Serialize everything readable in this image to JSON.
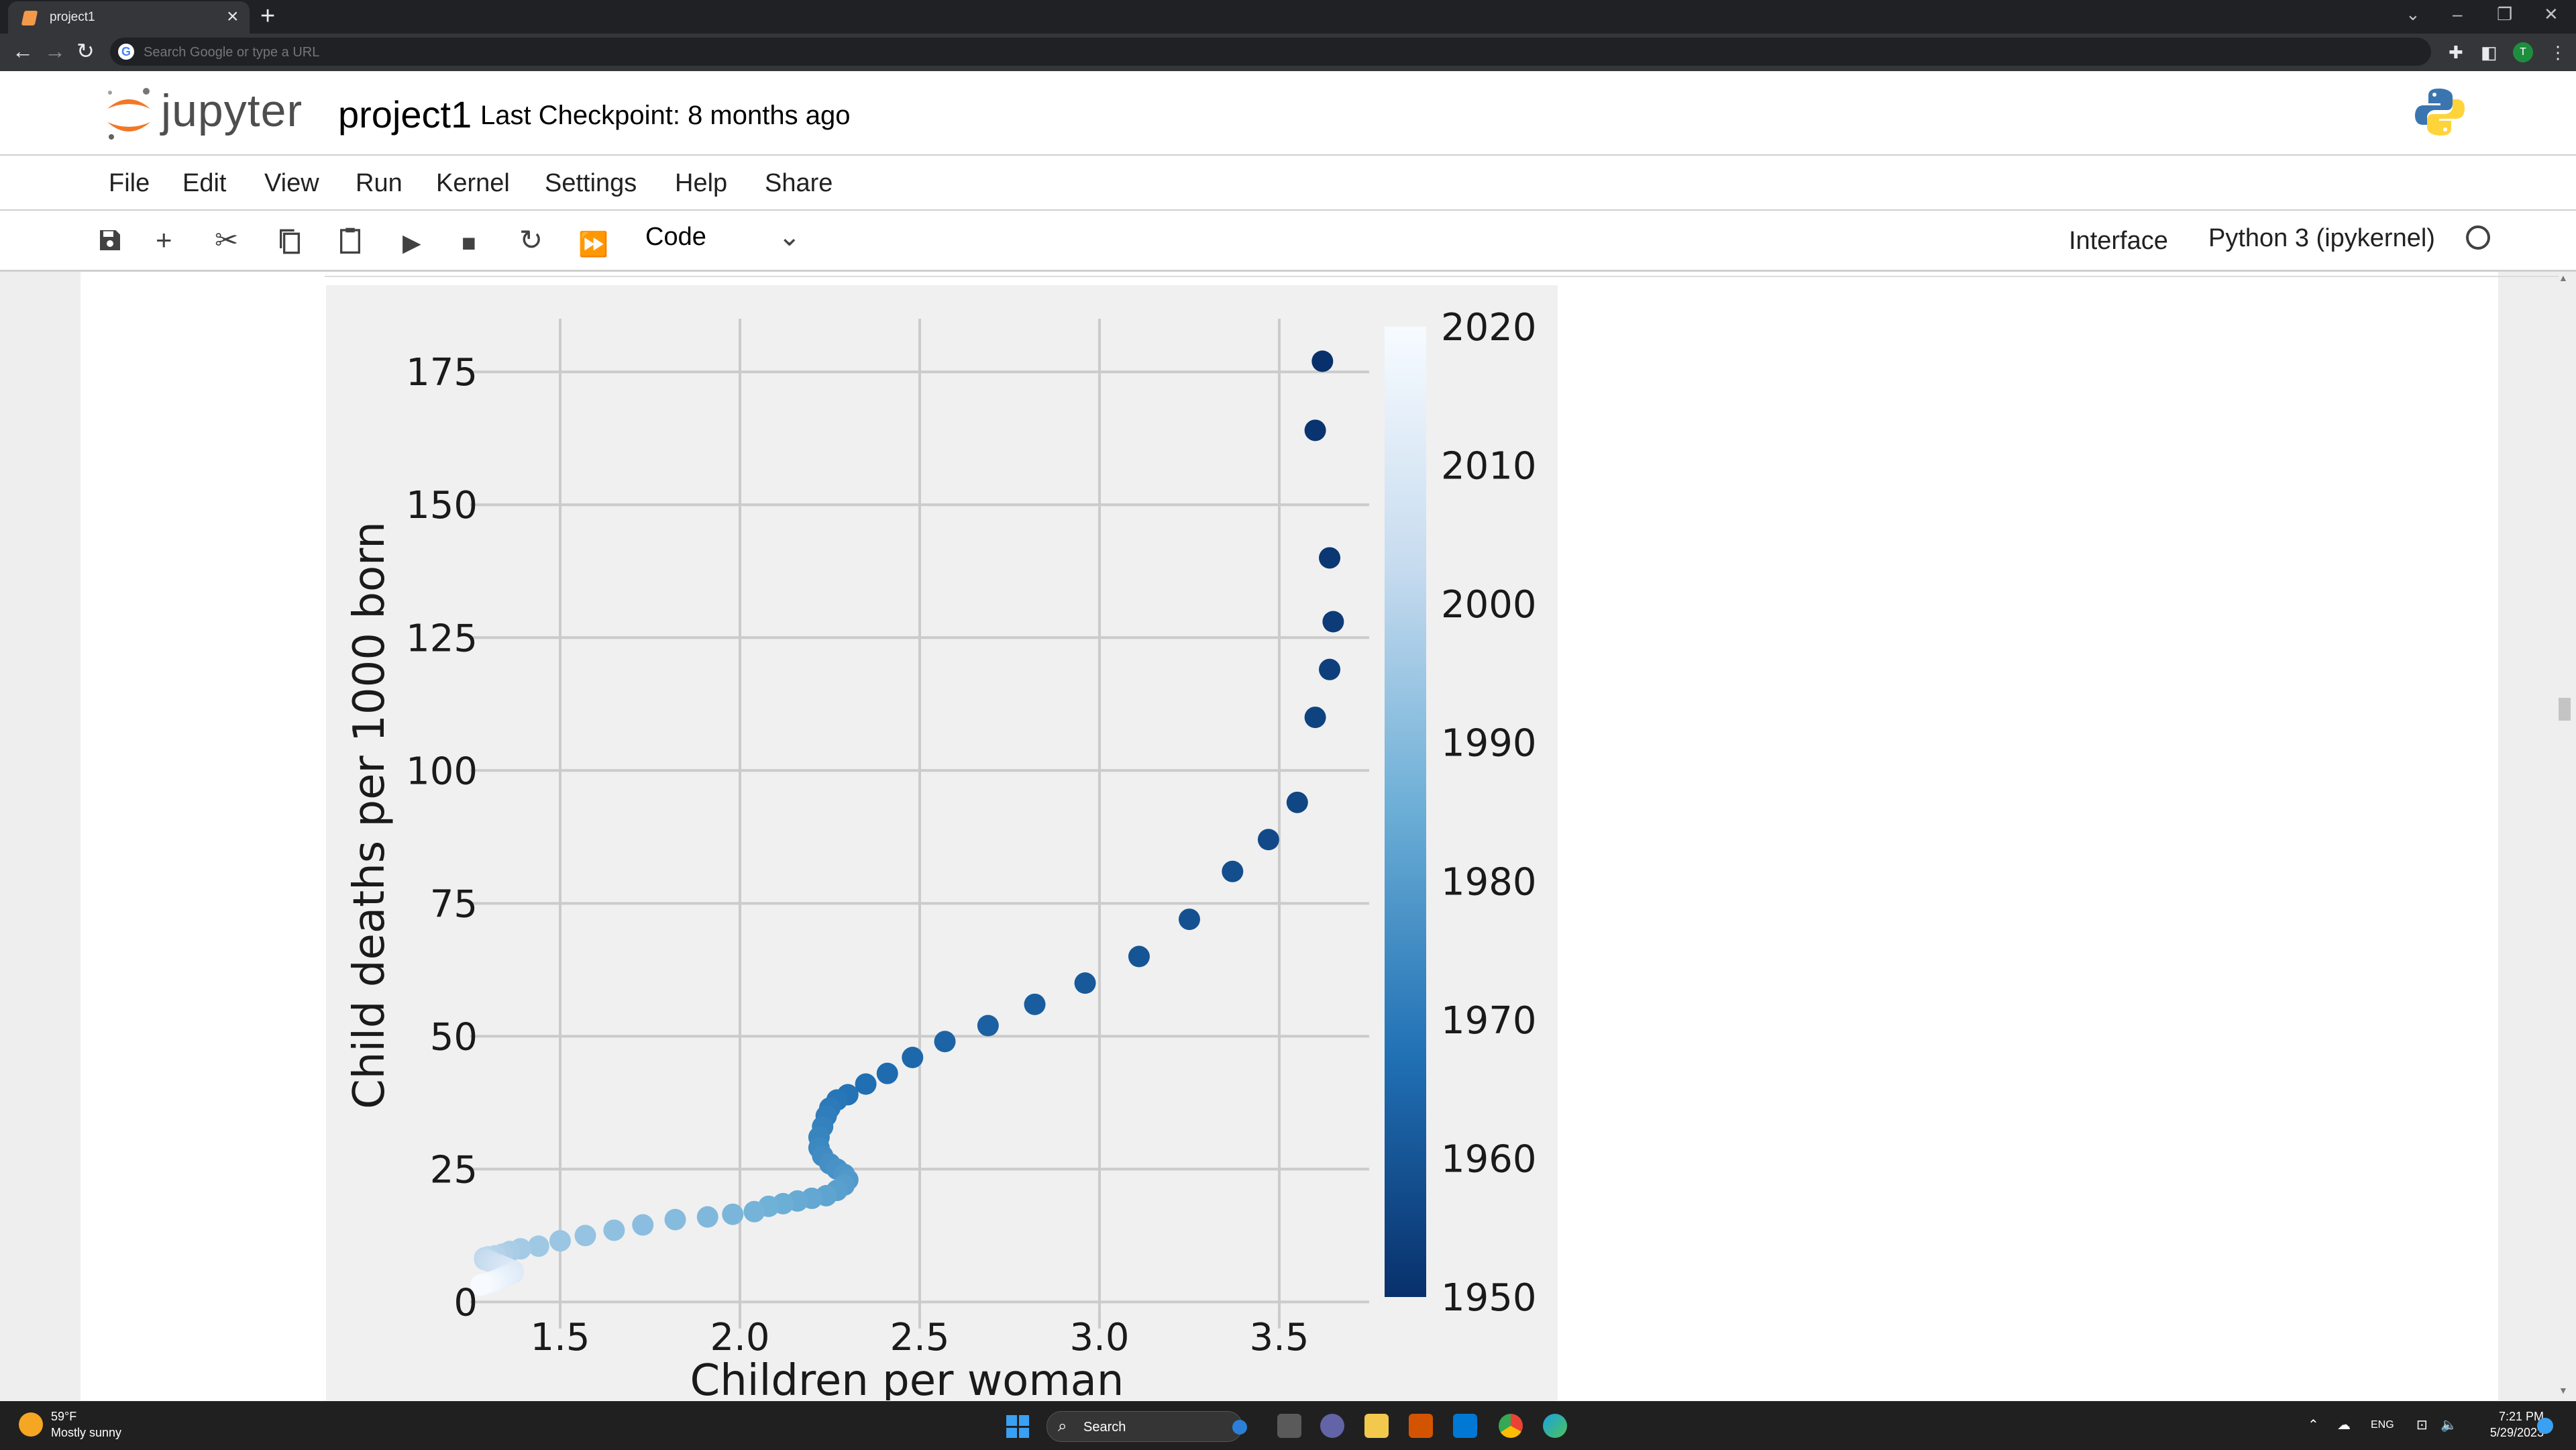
{
  "browser": {
    "tab_title": "project1",
    "omnibox_placeholder": "Search Google or type a URL"
  },
  "jupyter": {
    "logo_text": "jupyter",
    "notebook_name": "project1",
    "checkpoint": "Last Checkpoint: 8 months ago"
  },
  "menu": [
    "File",
    "Edit",
    "View",
    "Run",
    "Kernel",
    "Settings",
    "Help",
    "Share"
  ],
  "toolbar": {
    "cell_type": "Code",
    "interface_label": "Interface",
    "kernel_name": "Python 3 (ipykernel)"
  },
  "chart_data": {
    "type": "scatter",
    "xlabel": "Children per woman",
    "ylabel": "Child deaths per 1000 born",
    "xlim": [
      1.25,
      3.75
    ],
    "ylim": [
      -5,
      185
    ],
    "xticks": [
      1.5,
      2.0,
      2.5,
      3.0,
      3.5
    ],
    "yticks": [
      0,
      25,
      50,
      75,
      100,
      125,
      150,
      175
    ],
    "grid": true,
    "colorbar": {
      "label": "",
      "min": 1950,
      "max": 2020,
      "ticks": [
        1950,
        1960,
        1970,
        1980,
        1990,
        2000,
        2010,
        2020
      ],
      "colormap": "Blues_r"
    },
    "points": [
      {
        "year": 1950,
        "x": 3.62,
        "y": 177
      },
      {
        "year": 1951,
        "x": 3.6,
        "y": 164
      },
      {
        "year": 1952,
        "x": 3.64,
        "y": 140
      },
      {
        "year": 1953,
        "x": 3.65,
        "y": 128
      },
      {
        "year": 1954,
        "x": 3.64,
        "y": 119
      },
      {
        "year": 1955,
        "x": 3.6,
        "y": 110
      },
      {
        "year": 1956,
        "x": 3.55,
        "y": 94
      },
      {
        "year": 1957,
        "x": 3.47,
        "y": 87
      },
      {
        "year": 1958,
        "x": 3.37,
        "y": 81
      },
      {
        "year": 1959,
        "x": 3.25,
        "y": 72
      },
      {
        "year": 1960,
        "x": 3.11,
        "y": 65
      },
      {
        "year": 1961,
        "x": 2.96,
        "y": 60
      },
      {
        "year": 1962,
        "x": 2.82,
        "y": 56
      },
      {
        "year": 1963,
        "x": 2.69,
        "y": 52
      },
      {
        "year": 1964,
        "x": 2.57,
        "y": 49
      },
      {
        "year": 1965,
        "x": 2.48,
        "y": 46
      },
      {
        "year": 1966,
        "x": 2.41,
        "y": 43
      },
      {
        "year": 1967,
        "x": 2.35,
        "y": 41
      },
      {
        "year": 1968,
        "x": 2.3,
        "y": 39
      },
      {
        "year": 1969,
        "x": 2.27,
        "y": 38
      },
      {
        "year": 1970,
        "x": 2.25,
        "y": 36.5
      },
      {
        "year": 1971,
        "x": 2.24,
        "y": 35
      },
      {
        "year": 1972,
        "x": 2.23,
        "y": 33
      },
      {
        "year": 1973,
        "x": 2.22,
        "y": 31
      },
      {
        "year": 1974,
        "x": 2.22,
        "y": 29
      },
      {
        "year": 1975,
        "x": 2.23,
        "y": 27.5
      },
      {
        "year": 1976,
        "x": 2.25,
        "y": 26
      },
      {
        "year": 1977,
        "x": 2.27,
        "y": 25
      },
      {
        "year": 1978,
        "x": 2.29,
        "y": 24
      },
      {
        "year": 1979,
        "x": 2.3,
        "y": 23
      },
      {
        "year": 1980,
        "x": 2.29,
        "y": 22
      },
      {
        "year": 1981,
        "x": 2.27,
        "y": 21
      },
      {
        "year": 1982,
        "x": 2.24,
        "y": 20
      },
      {
        "year": 1983,
        "x": 2.2,
        "y": 19.5
      },
      {
        "year": 1984,
        "x": 2.16,
        "y": 19
      },
      {
        "year": 1985,
        "x": 2.12,
        "y": 18.5
      },
      {
        "year": 1986,
        "x": 2.08,
        "y": 18
      },
      {
        "year": 1987,
        "x": 2.04,
        "y": 17
      },
      {
        "year": 1988,
        "x": 1.98,
        "y": 16.5
      },
      {
        "year": 1989,
        "x": 1.91,
        "y": 16
      },
      {
        "year": 1990,
        "x": 1.82,
        "y": 15.5
      },
      {
        "year": 1991,
        "x": 1.73,
        "y": 14.5
      },
      {
        "year": 1992,
        "x": 1.65,
        "y": 13.5
      },
      {
        "year": 1993,
        "x": 1.57,
        "y": 12.5
      },
      {
        "year": 1994,
        "x": 1.5,
        "y": 11.5
      },
      {
        "year": 1995,
        "x": 1.44,
        "y": 10.5
      },
      {
        "year": 1996,
        "x": 1.39,
        "y": 10
      },
      {
        "year": 1997,
        "x": 1.36,
        "y": 9.5
      },
      {
        "year": 1998,
        "x": 1.34,
        "y": 9
      },
      {
        "year": 1999,
        "x": 1.32,
        "y": 8.7
      },
      {
        "year": 2000,
        "x": 1.3,
        "y": 8.5
      },
      {
        "year": 2001,
        "x": 1.29,
        "y": 8.3
      },
      {
        "year": 2002,
        "x": 1.29,
        "y": 8.0
      },
      {
        "year": 2003,
        "x": 1.3,
        "y": 7.8
      },
      {
        "year": 2004,
        "x": 1.31,
        "y": 7.5
      },
      {
        "year": 2005,
        "x": 1.32,
        "y": 7.2
      },
      {
        "year": 2006,
        "x": 1.33,
        "y": 7.0
      },
      {
        "year": 2007,
        "x": 1.34,
        "y": 6.7
      },
      {
        "year": 2008,
        "x": 1.35,
        "y": 6.4
      },
      {
        "year": 2009,
        "x": 1.36,
        "y": 6.1
      },
      {
        "year": 2010,
        "x": 1.37,
        "y": 5.8
      },
      {
        "year": 2011,
        "x": 1.37,
        "y": 5.5
      },
      {
        "year": 2012,
        "x": 1.36,
        "y": 5.2
      },
      {
        "year": 2013,
        "x": 1.35,
        "y": 4.9
      },
      {
        "year": 2014,
        "x": 1.34,
        "y": 4.6
      },
      {
        "year": 2015,
        "x": 1.33,
        "y": 4.3
      },
      {
        "year": 2016,
        "x": 1.32,
        "y": 4.0
      },
      {
        "year": 2017,
        "x": 1.31,
        "y": 3.8
      },
      {
        "year": 2018,
        "x": 1.3,
        "y": 3.6
      },
      {
        "year": 2019,
        "x": 1.29,
        "y": 3.4
      },
      {
        "year": 2020,
        "x": 1.28,
        "y": 3.2
      }
    ]
  },
  "taskbar": {
    "weather_temp": "59°F",
    "weather_desc": "Mostly sunny",
    "search_label": "Search",
    "lang": "ENG",
    "time": "7:21 PM",
    "date": "5/29/2023"
  },
  "icons": {
    "save": "save-icon",
    "add": "plus-icon",
    "cut": "scissors-icon",
    "copy": "copy-icon",
    "paste": "paste-icon",
    "run": "play-icon",
    "stop": "stop-icon",
    "restart": "refresh-icon",
    "run_all": "fast-forward-icon"
  }
}
